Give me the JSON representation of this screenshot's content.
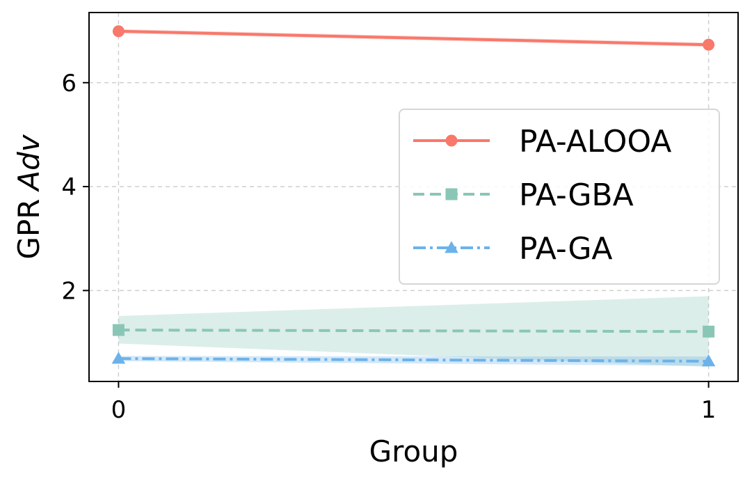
{
  "chart_data": {
    "type": "line",
    "title": "",
    "xlabel": "Group",
    "ylabel_prefix": "GPR",
    "ylabel_italic": "Adv",
    "x": [
      0,
      1
    ],
    "xticks": [
      "0",
      "1"
    ],
    "yticks": [
      "2",
      "4",
      "6"
    ],
    "xlim": [
      -0.05,
      1.05
    ],
    "ylim": [
      0.25,
      7.35
    ],
    "grid": true,
    "legend_position": "center-right",
    "series": [
      {
        "name": "PA-ALOOA",
        "values": [
          6.99,
          6.73
        ],
        "band_lower": [
          6.95,
          6.69
        ],
        "band_upper": [
          7.03,
          6.77
        ],
        "color": "#f8786b",
        "linestyle": "solid",
        "marker": "circle"
      },
      {
        "name": "PA-GBA",
        "values": [
          1.24,
          1.21
        ],
        "band_lower": [
          0.98,
          0.53
        ],
        "band_upper": [
          1.51,
          1.89
        ],
        "color": "#8ac6b6",
        "linestyle": "dashed",
        "marker": "square"
      },
      {
        "name": "PA-GA",
        "values": [
          0.69,
          0.64
        ],
        "band_lower": [
          0.64,
          0.55
        ],
        "band_upper": [
          0.74,
          0.73
        ],
        "color": "#6cb2ea",
        "linestyle": "dashdot",
        "marker": "triangle"
      }
    ]
  }
}
